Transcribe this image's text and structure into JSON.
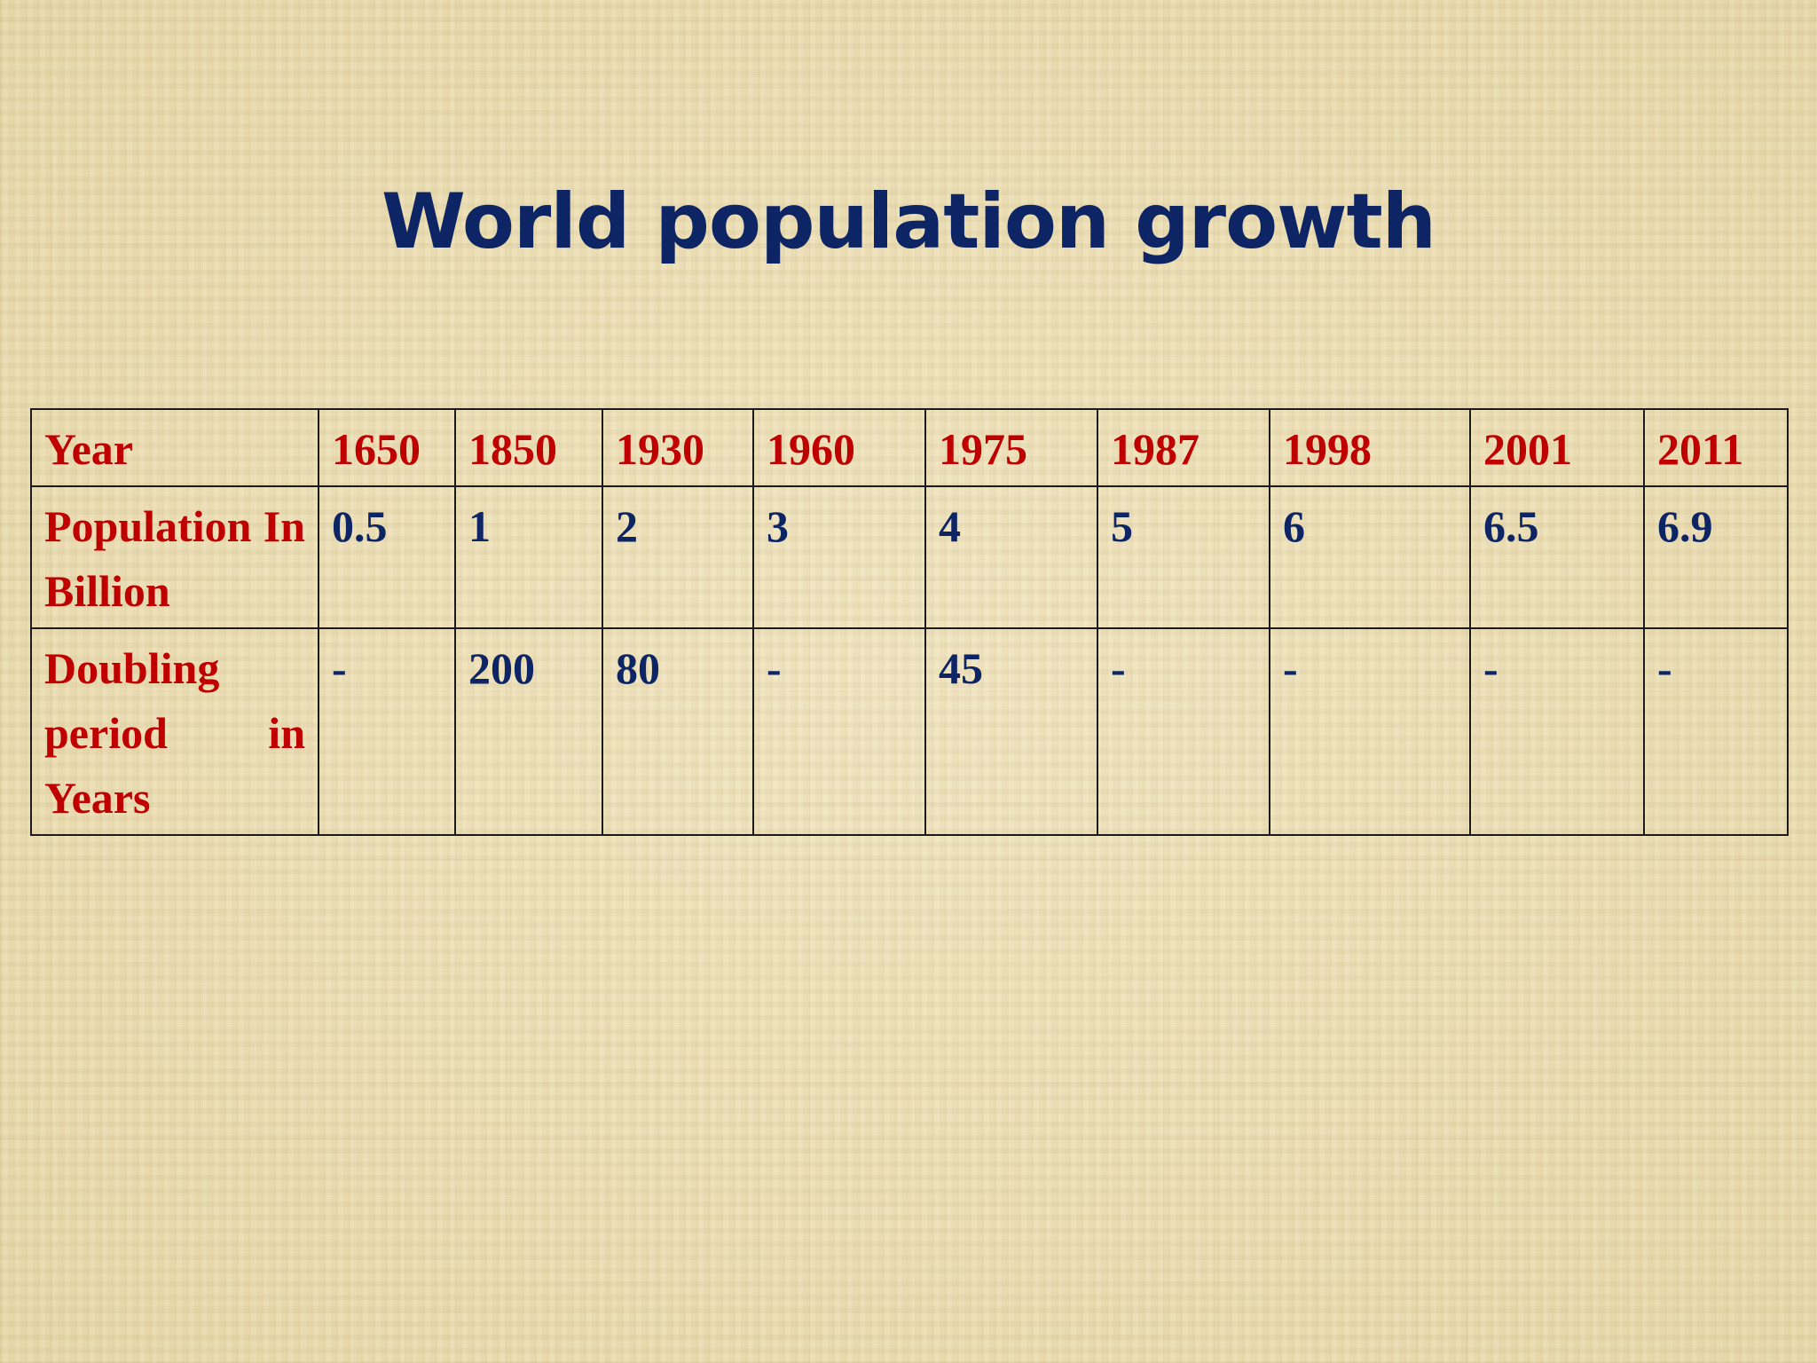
{
  "slide": {
    "title": "World population growth"
  },
  "table": {
    "row_labels": {
      "year": "Year",
      "population": "Population In Billion",
      "doubling": "Doubling period in Years"
    },
    "columns": [
      {
        "year": "1650",
        "population": "0.5",
        "doubling": "-"
      },
      {
        "year": "1850",
        "population": "1",
        "doubling": "200"
      },
      {
        "year": "1930",
        "population": "2",
        "doubling": "80"
      },
      {
        "year": "1960",
        "population": "3",
        "doubling": "-"
      },
      {
        "year": "1975",
        "population": "4",
        "doubling": "45"
      },
      {
        "year": "1987",
        "population": "5",
        "doubling": "-"
      },
      {
        "year": "1998",
        "population": "6",
        "doubling": "-"
      },
      {
        "year": "2001",
        "population": "6.5",
        "doubling": "-"
      },
      {
        "year": "2011",
        "population": "6.9",
        "doubling": "-"
      }
    ]
  },
  "colors": {
    "title": "#0d2564",
    "label_red": "#c00000",
    "value_navy": "#0d2564",
    "background": "#ede0b8",
    "border": "#1b1b1b"
  }
}
